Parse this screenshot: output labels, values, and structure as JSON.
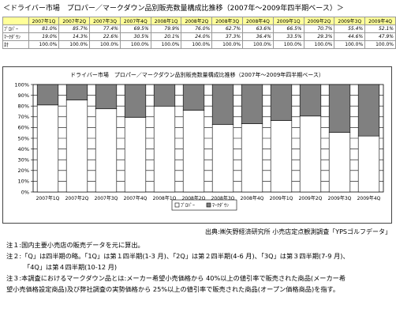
{
  "page_title": "＜ドライバー市場　プロパー／マークダウン品別販売数量構成比推移（2007年～2009年四半期ベース）＞",
  "table": {
    "headers": [
      "",
      "2007年1Q",
      "2007年2Q",
      "2007年3Q",
      "2007年4Q",
      "2008年1Q",
      "2008年2Q",
      "2008年3Q",
      "2008年4Q",
      "2009年1Q",
      "2009年2Q",
      "2009年3Q",
      "2009年4Q"
    ],
    "rows": [
      {
        "label": "ﾌﾟﾛﾊﾟｰ",
        "values": [
          "81.0%",
          "85.7%",
          "77.4%",
          "69.5%",
          "79.9%",
          "76.0%",
          "62.7%",
          "63.6%",
          "66.5%",
          "70.7%",
          "55.4%",
          "52.1%"
        ]
      },
      {
        "label": "ﾏｰｸﾀﾞｳﾝ",
        "values": [
          "19.0%",
          "14.3%",
          "22.6%",
          "30.5%",
          "20.1%",
          "24.0%",
          "37.3%",
          "36.4%",
          "33.5%",
          "29.3%",
          "44.6%",
          "47.9%"
        ]
      },
      {
        "label": "計",
        "values": [
          "100.0%",
          "100.0%",
          "100.0%",
          "100.0%",
          "100.0%",
          "100.0%",
          "100.0%",
          "100.0%",
          "100.0%",
          "100.0%",
          "100.0%",
          "100.0%"
        ]
      }
    ]
  },
  "chart_data": {
    "type": "bar",
    "stacked": true,
    "title": "ドライバー市場　プロパー／マークダウン品別販売数量構成比推移（2007年～2009年四半期ベース）",
    "categories": [
      "2007年1Q",
      "2007年2Q",
      "2007年3Q",
      "2007年4Q",
      "2008年1Q",
      "2008年2Q",
      "2008年3Q",
      "2008年4Q",
      "2009年1Q",
      "2009年2Q",
      "2009年3Q",
      "2009年4Q"
    ],
    "series": [
      {
        "name": "ﾌﾟﾛﾊﾟｰ",
        "values": [
          81.0,
          85.7,
          77.4,
          69.5,
          79.9,
          76.0,
          62.7,
          63.6,
          66.5,
          70.7,
          55.4,
          52.1
        ],
        "color": "#ffffff"
      },
      {
        "name": "ﾏｰｸﾀﾞｳﾝ",
        "values": [
          19.0,
          14.3,
          22.6,
          30.5,
          20.1,
          24.0,
          37.3,
          36.4,
          33.5,
          29.3,
          44.6,
          47.9
        ],
        "color": "#808080"
      }
    ],
    "ylim": [
      0,
      100
    ],
    "yticks": [
      "0%",
      "10%",
      "20%",
      "30%",
      "40%",
      "50%",
      "60%",
      "70%",
      "80%",
      "90%",
      "100%"
    ],
    "grid": true,
    "legend_position": "bottom"
  },
  "source": "出典:㈱矢野経済研究所 小売店定点観測調査「YPSゴルフデータ」",
  "notes": [
    "注１:国内主要小売店の販売データを元に算出。",
    "注２:「Q」は四半期の略。「1Q」は第１四半期(1-3 月)、「2Q」は第２四半期(4-6 月)、「3Q」は第３四半期(7-9 月)、",
    "「4Q」は第４四半期(10-12 月)",
    "注３:本調査におけるマークダウン品とは:メーカー希望小売価格から 40%以上の値引率で販売された商品(メーカー希",
    "望小売価格設定商品)及び弊社調査の実勢価格から 25%以上の値引率で販売された商品(オープン価格商品)を指す。"
  ]
}
